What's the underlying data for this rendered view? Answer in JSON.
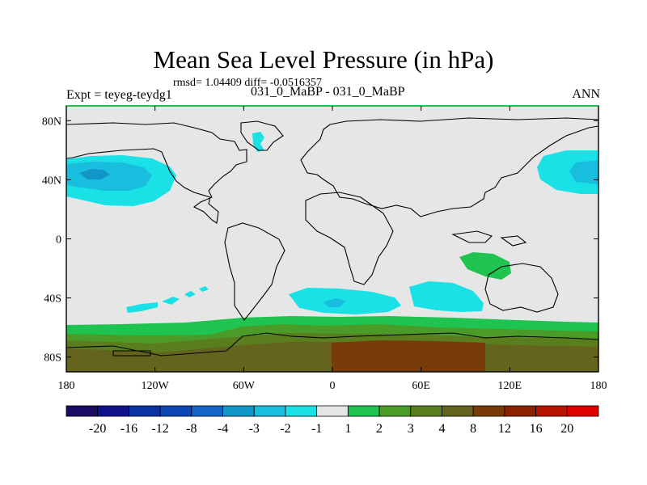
{
  "header": {
    "title": "Mean Sea Level Pressure (in hPa)",
    "stats": "rmsd= 1.04409 diff= -0.0516357",
    "experiment": "Expt = teyeg-teydg1",
    "cases": "031_0_MaBP - 031_0_MaBP",
    "season": "ANN"
  },
  "chart_data": {
    "type": "heatmap",
    "title": "Mean Sea Level Pressure (in hPa)",
    "variable": "mean sea level pressure difference",
    "units": "hPa",
    "xlim": [
      -180,
      180
    ],
    "ylim": [
      -90,
      90
    ],
    "x_ticks": [
      -180,
      -120,
      -60,
      0,
      60,
      120,
      180
    ],
    "x_tick_labels": [
      "180",
      "120W",
      "60W",
      "0",
      "60E",
      "120E",
      "180"
    ],
    "y_ticks": [
      80,
      40,
      0,
      -40,
      -80
    ],
    "y_tick_labels": [
      "80N",
      "40N",
      "0",
      "40S",
      "80S"
    ],
    "colorbar": {
      "levels": [
        -20,
        -16,
        -12,
        -8,
        -4,
        -3,
        -2,
        -1,
        1,
        2,
        3,
        4,
        8,
        12,
        16,
        20
      ],
      "labels": [
        "-20",
        "-16",
        "-12",
        "-8",
        "-4",
        "-3",
        "-2",
        "-1",
        "1",
        "2",
        "3",
        "4",
        "8",
        "12",
        "16",
        "20"
      ],
      "colors": [
        "#1a0c64",
        "#11118c",
        "#0a32a0",
        "#0d47b4",
        "#1464c8",
        "#1296c8",
        "#19bede",
        "#19e1e6",
        "#e6e6e6",
        "#1ec350",
        "#4b9b28",
        "#5a7d1e",
        "#64641e",
        "#783c0a",
        "#8c2300",
        "#b41400",
        "#e10000"
      ]
    },
    "regions": [
      {
        "name": "North Pacific low",
        "value_range": [
          -3,
          -2
        ],
        "core": -4
      },
      {
        "name": "North Atlantic small patch",
        "value_range": [
          -2,
          -1
        ]
      },
      {
        "name": "South Atlantic-Indian low",
        "value_range": [
          -2,
          -1
        ],
        "core": -3
      },
      {
        "name": "South Pacific spots",
        "value_range": [
          -2,
          -1
        ]
      },
      {
        "name": "Indian Ocean high near Australia",
        "value_range": [
          1,
          2
        ]
      },
      {
        "name": "Southern Ocean band",
        "value_range": [
          1,
          2
        ]
      },
      {
        "name": "Antarctica",
        "value_range": [
          4,
          12
        ]
      }
    ],
    "background_value_range": [
      -1,
      1
    ]
  }
}
